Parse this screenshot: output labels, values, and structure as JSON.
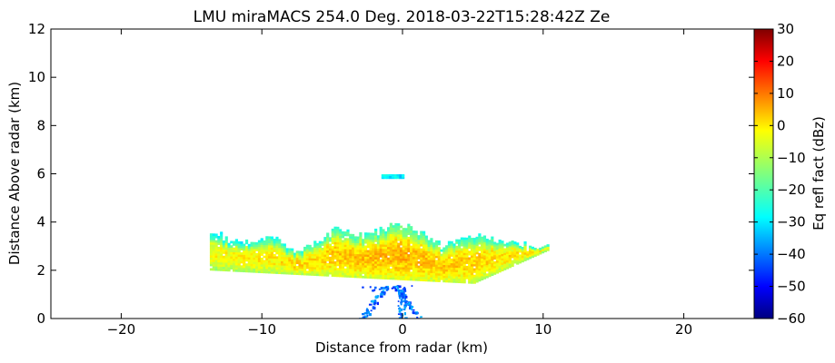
{
  "chart_data": {
    "type": "heatmap",
    "title": "LMU miraMACS 254.0 Deg. 2018-03-22T15:28:42Z  Ze",
    "xlabel": "Distance from radar (km)",
    "ylabel": "Distance Above radar  (km)",
    "xlim": [
      -25,
      25
    ],
    "ylim": [
      0,
      12
    ],
    "x_ticks": [
      -20,
      -10,
      0,
      10,
      20
    ],
    "y_ticks": [
      0,
      2,
      4,
      6,
      8,
      10,
      12
    ],
    "grid": false,
    "colorbar": {
      "label": "Eq refl fact (dBz)",
      "range": [
        -60,
        30
      ],
      "ticks": [
        30,
        20,
        10,
        0,
        -10,
        -20,
        -30,
        -40,
        -50,
        -60
      ],
      "colormap": "jet"
    },
    "features": [
      {
        "description": "main echo layer",
        "x_range": [
          -13.7,
          10.4
        ],
        "z_base": [
          1.4,
          2.2
        ],
        "z_top": [
          2.7,
          3.8
        ],
        "core_dbz": 5
      },
      {
        "description": "isolated echo patch",
        "x_range": [
          -1.5,
          0
        ],
        "z": [
          5.8,
          5.95
        ],
        "dbz": -30
      },
      {
        "description": "weak near-ground returns",
        "x_range": [
          -3,
          1
        ],
        "z_range": [
          0,
          1.4
        ],
        "dbz": -45
      }
    ]
  },
  "colors": {
    "jet": [
      "#00007f",
      "#0000ff",
      "#007fff",
      "#00ffff",
      "#7fff7f",
      "#ffff00",
      "#ff7f00",
      "#ff0000",
      "#7f0000"
    ]
  }
}
